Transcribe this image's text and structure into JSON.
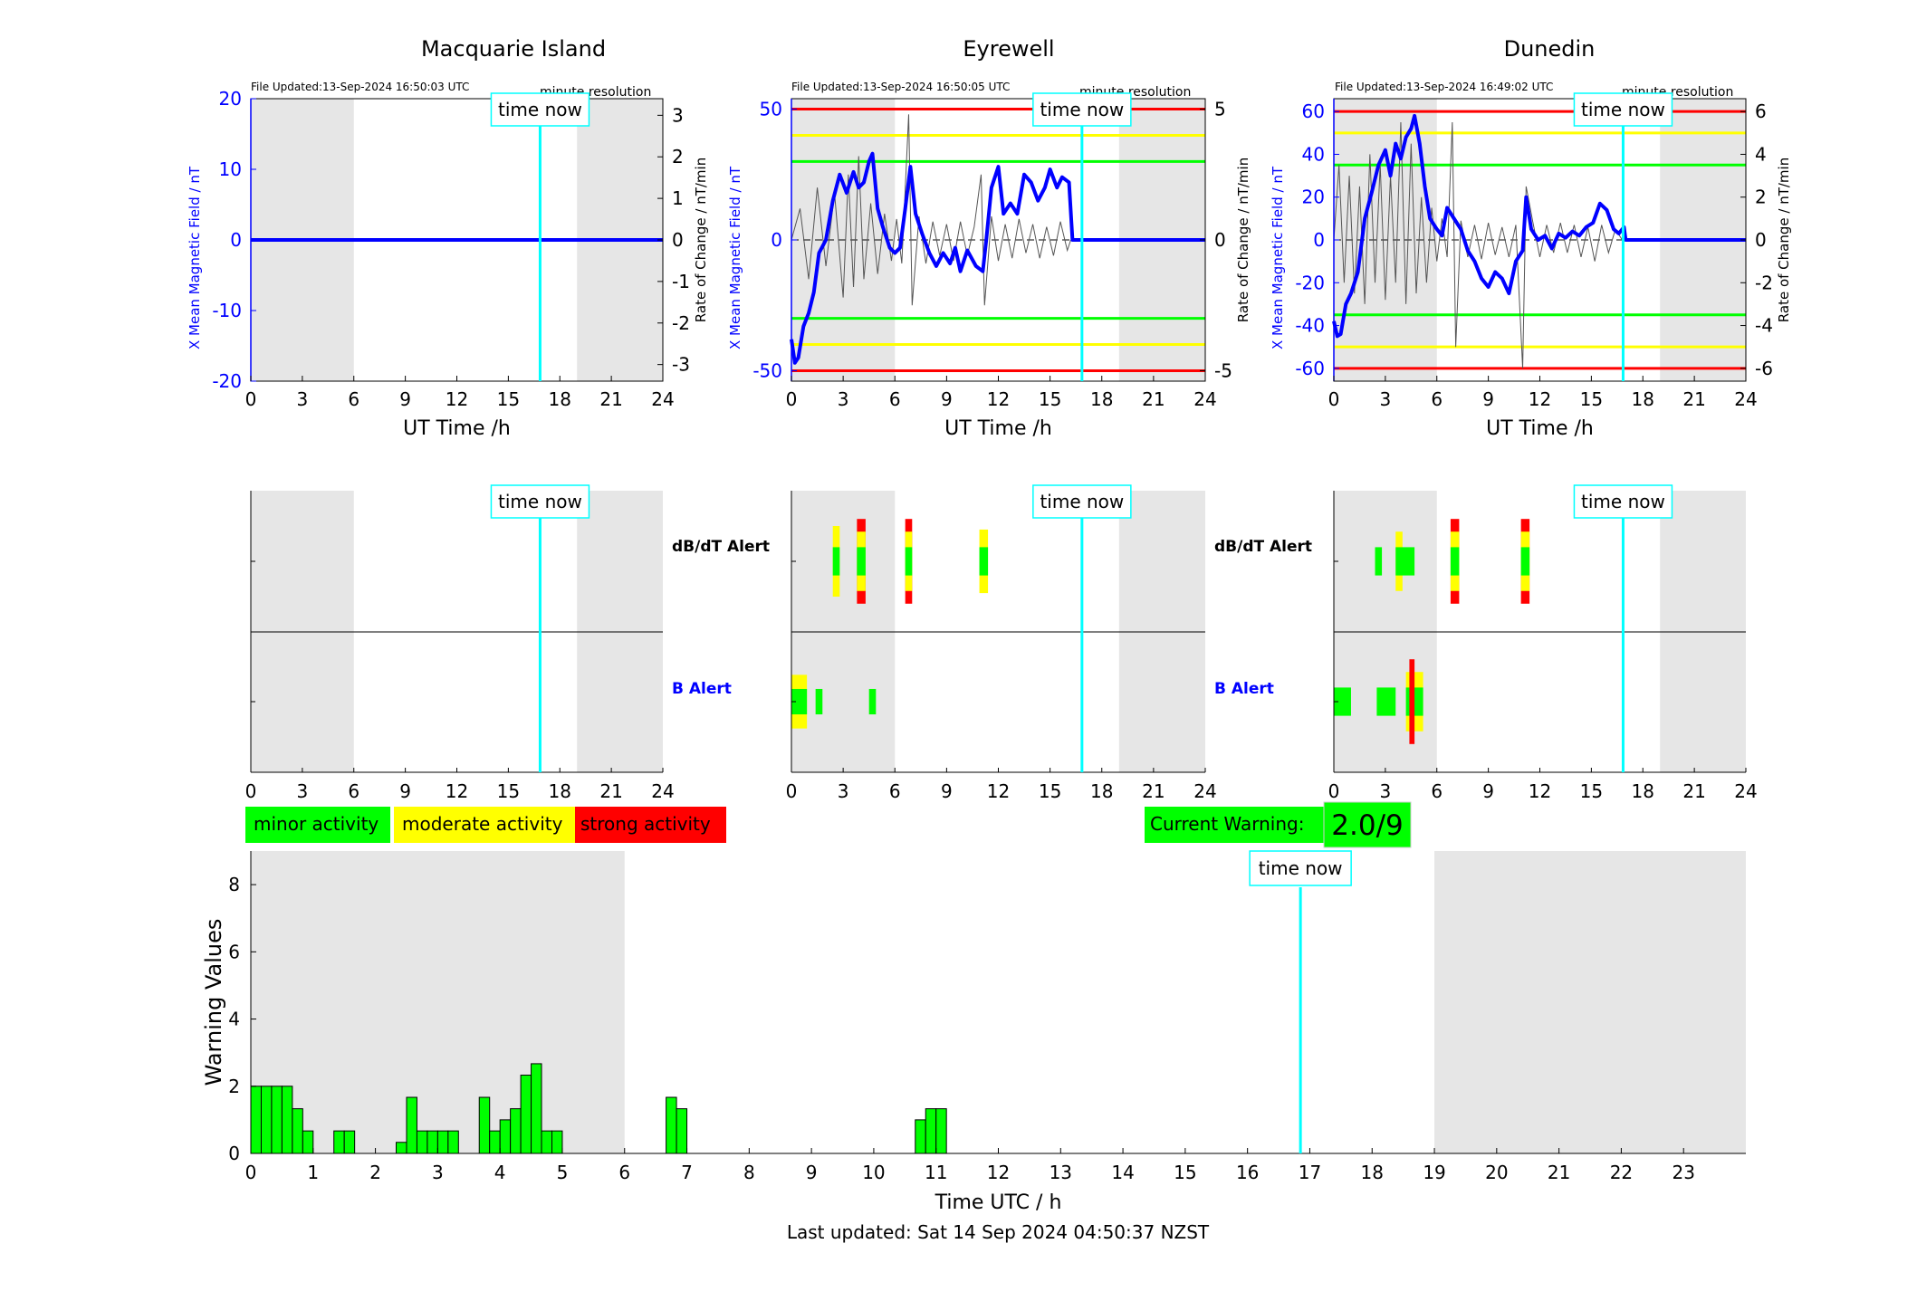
{
  "colors": {
    "blue": "#0000ff",
    "green": "#00ff00",
    "yellow": "#ffff00",
    "red": "#ff0000",
    "cyan": "#00ffff",
    "shade": "#e6e6e6",
    "trace": "#555555"
  },
  "stations": [
    {
      "title": "Macquarie Island",
      "file_updated": "File Updated:13-Sep-2024 16:50:03 UTC",
      "resolution": "minute resolution",
      "ylabel_left": "X Mean Magnetic Field / nT",
      "ylabel_right": "Rate of Change / nT/min",
      "yticks_left": [
        "20",
        "10",
        "0",
        "-10",
        "-20"
      ],
      "yticks_right": [
        "3",
        "2",
        "1",
        "0",
        "-1",
        "-2",
        "-3"
      ],
      "time_now": "time now",
      "xlabel": "UT Time /h",
      "xticks": [
        "0",
        "3",
        "6",
        "9",
        "12",
        "15",
        "18",
        "21",
        "24"
      ],
      "ylim": [
        -20,
        20
      ],
      "rlim": [
        -3.4,
        3.4
      ],
      "thresholds": [],
      "field_series": [
        [
          0,
          0
        ],
        [
          17,
          0
        ],
        [
          24,
          0
        ]
      ],
      "alerts": {
        "dbdt": [],
        "b": []
      }
    },
    {
      "title": "Eyrewell",
      "file_updated": "File Updated:13-Sep-2024 16:50:05 UTC",
      "resolution": "minute resolution",
      "ylabel_left": "X Mean Magnetic Field / nT",
      "ylabel_right": "Rate of Change / nT/min",
      "yticks_left": [
        "50",
        "0",
        "-50"
      ],
      "yticks_right": [
        "5",
        "0",
        "-5"
      ],
      "time_now": "time now",
      "xlabel": "UT Time /h",
      "xticks": [
        "0",
        "3",
        "6",
        "9",
        "12",
        "15",
        "18",
        "21",
        "24"
      ],
      "ylim": [
        -54,
        54
      ],
      "rlim": [
        -5.4,
        5.4
      ],
      "thresholds": [
        {
          "v": 50,
          "c": "red"
        },
        {
          "v": 40,
          "c": "yellow"
        },
        {
          "v": 30,
          "c": "green"
        },
        {
          "v": -30,
          "c": "green"
        },
        {
          "v": -40,
          "c": "yellow"
        },
        {
          "v": -50,
          "c": "red"
        }
      ],
      "field_series": [
        [
          0,
          -38
        ],
        [
          0.2,
          -47
        ],
        [
          0.4,
          -45
        ],
        [
          0.7,
          -33
        ],
        [
          1,
          -28
        ],
        [
          1.3,
          -20
        ],
        [
          1.6,
          -5
        ],
        [
          2,
          0
        ],
        [
          2.4,
          15
        ],
        [
          2.8,
          25
        ],
        [
          3.2,
          18
        ],
        [
          3.6,
          26
        ],
        [
          3.9,
          20
        ],
        [
          4.2,
          22
        ],
        [
          4.5,
          30
        ],
        [
          4.7,
          33
        ],
        [
          5,
          12
        ],
        [
          5.3,
          5
        ],
        [
          5.7,
          -3
        ],
        [
          6,
          -5
        ],
        [
          6.3,
          -3
        ],
        [
          6.6,
          12
        ],
        [
          6.9,
          28
        ],
        [
          7.2,
          10
        ],
        [
          7.6,
          2
        ],
        [
          8,
          -5
        ],
        [
          8.4,
          -10
        ],
        [
          8.8,
          -5
        ],
        [
          9.2,
          -9
        ],
        [
          9.5,
          -3
        ],
        [
          9.8,
          -12
        ],
        [
          10.2,
          -4
        ],
        [
          10.7,
          -10
        ],
        [
          11.1,
          -12
        ],
        [
          11.3,
          0
        ],
        [
          11.6,
          20
        ],
        [
          12,
          28
        ],
        [
          12.3,
          10
        ],
        [
          12.7,
          14
        ],
        [
          13.1,
          10
        ],
        [
          13.5,
          25
        ],
        [
          13.9,
          22
        ],
        [
          14.3,
          15
        ],
        [
          14.7,
          20
        ],
        [
          15,
          27
        ],
        [
          15.4,
          20
        ],
        [
          15.7,
          24
        ],
        [
          16.1,
          22
        ],
        [
          16.3,
          0
        ],
        [
          17,
          0
        ],
        [
          24,
          0
        ]
      ],
      "rate_series": [
        [
          0,
          0
        ],
        [
          0.5,
          1.2
        ],
        [
          1,
          -1.5
        ],
        [
          1.5,
          2.0
        ],
        [
          2,
          -1.0
        ],
        [
          2.5,
          1.8
        ],
        [
          3,
          -2.2
        ],
        [
          3.3,
          2.5
        ],
        [
          3.6,
          -1.8
        ],
        [
          3.9,
          3.2
        ],
        [
          4.2,
          -1.5
        ],
        [
          4.6,
          1.4
        ],
        [
          5,
          -1.3
        ],
        [
          5.4,
          1.0
        ],
        [
          5.8,
          -0.8
        ],
        [
          6.1,
          0.8
        ],
        [
          6.4,
          -0.9
        ],
        [
          6.8,
          4.8
        ],
        [
          7,
          -2.5
        ],
        [
          7.4,
          0.9
        ],
        [
          7.8,
          -0.9
        ],
        [
          8.2,
          0.7
        ],
        [
          8.6,
          -0.6
        ],
        [
          9,
          0.6
        ],
        [
          9.4,
          -0.8
        ],
        [
          9.8,
          0.7
        ],
        [
          10.2,
          -0.6
        ],
        [
          10.6,
          0.5
        ],
        [
          11,
          2.5
        ],
        [
          11.2,
          -2.5
        ],
        [
          11.6,
          0.9
        ],
        [
          12,
          -0.8
        ],
        [
          12.4,
          0.6
        ],
        [
          12.8,
          -0.7
        ],
        [
          13.2,
          0.8
        ],
        [
          13.6,
          -0.5
        ],
        [
          14,
          0.6
        ],
        [
          14.4,
          -0.7
        ],
        [
          14.8,
          0.5
        ],
        [
          15.2,
          -0.6
        ],
        [
          15.6,
          0.7
        ],
        [
          16,
          -0.4
        ],
        [
          16.2,
          0
        ]
      ],
      "alerts": {
        "dbdt": [
          {
            "s": 2.4,
            "e": 2.8,
            "c": "yellow",
            "h": 0.5
          },
          {
            "s": 2.4,
            "e": 2.8,
            "c": "green",
            "h": 0.2
          },
          {
            "s": 3.8,
            "e": 4.3,
            "c": "red",
            "h": 0.6
          },
          {
            "s": 3.8,
            "e": 4.3,
            "c": "yellow",
            "h": 0.42
          },
          {
            "s": 3.8,
            "e": 4.3,
            "c": "green",
            "h": 0.2
          },
          {
            "s": 6.6,
            "e": 7,
            "c": "red",
            "h": 0.6
          },
          {
            "s": 6.6,
            "e": 7,
            "c": "yellow",
            "h": 0.42
          },
          {
            "s": 6.6,
            "e": 7,
            "c": "green",
            "h": 0.2
          },
          {
            "s": 10.9,
            "e": 11.4,
            "c": "yellow",
            "h": 0.45
          },
          {
            "s": 10.9,
            "e": 11.4,
            "c": "green",
            "h": 0.2
          }
        ],
        "b": [
          {
            "s": 0,
            "e": 0.9,
            "c": "yellow",
            "h": 0.38
          },
          {
            "s": 0,
            "e": 0.9,
            "c": "green",
            "h": 0.18
          },
          {
            "s": 1.4,
            "e": 1.8,
            "c": "green",
            "h": 0.18
          },
          {
            "s": 4.5,
            "e": 4.9,
            "c": "green",
            "h": 0.18
          }
        ]
      }
    },
    {
      "title": "Dunedin",
      "file_updated": "File Updated:13-Sep-2024 16:49:02 UTC",
      "resolution": "minute resolution",
      "ylabel_left": "X Mean Magnetic Field / nT",
      "ylabel_right": "Rate of Change / nT/min",
      "yticks_left": [
        "60",
        "40",
        "20",
        "0",
        "-20",
        "-40",
        "-60"
      ],
      "yticks_right": [
        "6",
        "4",
        "2",
        "0",
        "-2",
        "-4",
        "-6"
      ],
      "time_now": "time now",
      "xlabel": "UT Time /h",
      "xticks": [
        "0",
        "3",
        "6",
        "9",
        "12",
        "15",
        "18",
        "21",
        "24"
      ],
      "ylim": [
        -66,
        66
      ],
      "rlim": [
        -6.6,
        6.6
      ],
      "thresholds": [
        {
          "v": 60,
          "c": "red"
        },
        {
          "v": 50,
          "c": "yellow"
        },
        {
          "v": 35,
          "c": "green"
        },
        {
          "v": -35,
          "c": "green"
        },
        {
          "v": -50,
          "c": "yellow"
        },
        {
          "v": -60,
          "c": "red"
        }
      ],
      "field_series": [
        [
          0,
          -38
        ],
        [
          0.2,
          -45
        ],
        [
          0.4,
          -44
        ],
        [
          0.7,
          -30
        ],
        [
          1,
          -25
        ],
        [
          1.4,
          -15
        ],
        [
          1.8,
          10
        ],
        [
          2.2,
          22
        ],
        [
          2.6,
          35
        ],
        [
          3,
          42
        ],
        [
          3.3,
          30
        ],
        [
          3.6,
          45
        ],
        [
          3.9,
          38
        ],
        [
          4.2,
          48
        ],
        [
          4.5,
          52
        ],
        [
          4.7,
          58
        ],
        [
          5,
          45
        ],
        [
          5.3,
          25
        ],
        [
          5.6,
          10
        ],
        [
          6,
          5
        ],
        [
          6.3,
          2
        ],
        [
          6.6,
          15
        ],
        [
          7,
          10
        ],
        [
          7.4,
          5
        ],
        [
          7.8,
          -5
        ],
        [
          8.2,
          -10
        ],
        [
          8.6,
          -18
        ],
        [
          9,
          -22
        ],
        [
          9.4,
          -15
        ],
        [
          9.8,
          -18
        ],
        [
          10.2,
          -25
        ],
        [
          10.6,
          -10
        ],
        [
          11,
          -5
        ],
        [
          11.2,
          20
        ],
        [
          11.5,
          5
        ],
        [
          11.9,
          0
        ],
        [
          12.3,
          2
        ],
        [
          12.7,
          -4
        ],
        [
          13.1,
          3
        ],
        [
          13.5,
          1
        ],
        [
          13.9,
          4
        ],
        [
          14.3,
          2
        ],
        [
          14.7,
          6
        ],
        [
          15.1,
          8
        ],
        [
          15.5,
          17
        ],
        [
          15.9,
          14
        ],
        [
          16.3,
          5
        ],
        [
          16.6,
          3
        ],
        [
          16.9,
          6
        ],
        [
          17,
          0
        ],
        [
          24,
          0
        ]
      ],
      "rate_series": [
        [
          0,
          0
        ],
        [
          0.3,
          3.5
        ],
        [
          0.6,
          -2
        ],
        [
          0.9,
          3
        ],
        [
          1.2,
          -2.5
        ],
        [
          1.5,
          2.5
        ],
        [
          1.8,
          -3
        ],
        [
          2.1,
          4
        ],
        [
          2.4,
          -2
        ],
        [
          2.7,
          3.5
        ],
        [
          3,
          -2.8
        ],
        [
          3.3,
          3
        ],
        [
          3.6,
          -2
        ],
        [
          3.9,
          5.5
        ],
        [
          4.2,
          -3
        ],
        [
          4.5,
          4.5
        ],
        [
          4.8,
          -2.5
        ],
        [
          5.1,
          2
        ],
        [
          5.4,
          -2
        ],
        [
          5.7,
          1.5
        ],
        [
          6,
          -1
        ],
        [
          6.3,
          1
        ],
        [
          6.6,
          -0.8
        ],
        [
          6.9,
          5.5
        ],
        [
          7.1,
          -5
        ],
        [
          7.4,
          0.9
        ],
        [
          7.8,
          -0.8
        ],
        [
          8.2,
          0.7
        ],
        [
          8.6,
          -0.9
        ],
        [
          9,
          0.8
        ],
        [
          9.4,
          -0.7
        ],
        [
          9.8,
          0.6
        ],
        [
          10.2,
          -0.8
        ],
        [
          10.6,
          0.7
        ],
        [
          11,
          -6
        ],
        [
          11.2,
          2.5
        ],
        [
          11.6,
          0.8
        ],
        [
          12,
          -0.8
        ],
        [
          12.4,
          0.7
        ],
        [
          12.8,
          -0.6
        ],
        [
          13.2,
          0.8
        ],
        [
          13.6,
          -0.6
        ],
        [
          14,
          0.7
        ],
        [
          14.4,
          -0.8
        ],
        [
          14.8,
          0.6
        ],
        [
          15.2,
          -1
        ],
        [
          15.6,
          0.7
        ],
        [
          16,
          -0.6
        ],
        [
          16.4,
          0.5
        ],
        [
          16.8,
          0
        ]
      ],
      "alerts": {
        "dbdt": [
          {
            "s": 2.4,
            "e": 2.8,
            "c": "green",
            "h": 0.2
          },
          {
            "s": 3.6,
            "e": 4,
            "c": "yellow",
            "h": 0.42
          },
          {
            "s": 3.6,
            "e": 4.7,
            "c": "green",
            "h": 0.2
          },
          {
            "s": 6.8,
            "e": 7.3,
            "c": "red",
            "h": 0.6
          },
          {
            "s": 6.8,
            "e": 7.3,
            "c": "yellow",
            "h": 0.42
          },
          {
            "s": 6.8,
            "e": 7.3,
            "c": "green",
            "h": 0.2
          },
          {
            "s": 10.9,
            "e": 11.4,
            "c": "red",
            "h": 0.6
          },
          {
            "s": 10.9,
            "e": 11.4,
            "c": "yellow",
            "h": 0.42
          },
          {
            "s": 10.9,
            "e": 11.4,
            "c": "green",
            "h": 0.2
          }
        ],
        "b": [
          {
            "s": 0,
            "e": 1,
            "c": "green",
            "h": 0.2
          },
          {
            "s": 2.5,
            "e": 3.6,
            "c": "green",
            "h": 0.2
          },
          {
            "s": 4.2,
            "e": 5.2,
            "c": "yellow",
            "h": 0.42
          },
          {
            "s": 4.2,
            "e": 5.2,
            "c": "green",
            "h": 0.2
          },
          {
            "s": 4.4,
            "e": 4.7,
            "c": "red",
            "h": 0.6
          }
        ]
      }
    }
  ],
  "alert_labels": {
    "dbdt": "dB/dT Alert",
    "b": "B Alert"
  },
  "alert_xticks": [
    "0",
    "3",
    "6",
    "9",
    "12",
    "15",
    "18",
    "21",
    "24"
  ],
  "time_now_hour": 16.85,
  "shade_ranges": [
    [
      0,
      6
    ],
    [
      19,
      24
    ]
  ],
  "legend": [
    {
      "label": "minor activity",
      "color": "#00ff00"
    },
    {
      "label": "moderate activity",
      "color": "#ffff00"
    },
    {
      "label": "strong activity",
      "color": "#ff0000"
    }
  ],
  "current_warning": {
    "label": "Current Warning:",
    "value": "2.0/9"
  },
  "chart_data": {
    "type": "bar",
    "title": "",
    "xlabel": "Time UTC / h",
    "ylabel": "Warning Values",
    "xlim": [
      0,
      24
    ],
    "ylim": [
      0,
      9
    ],
    "xticks": [
      "0",
      "1",
      "2",
      "3",
      "4",
      "5",
      "6",
      "7",
      "8",
      "9",
      "10",
      "11",
      "12",
      "13",
      "14",
      "15",
      "16",
      "17",
      "18",
      "19",
      "20",
      "21",
      "22",
      "23"
    ],
    "yticks": [
      "0",
      "2",
      "4",
      "6",
      "8"
    ],
    "time_now_label": "time now",
    "shade_ranges": [
      [
        0,
        6
      ],
      [
        19,
        24
      ]
    ],
    "bar_width": 0.1667,
    "bars": [
      {
        "x": 0,
        "v": 2
      },
      {
        "x": 0.1667,
        "v": 2
      },
      {
        "x": 0.3333,
        "v": 2
      },
      {
        "x": 0.5,
        "v": 2
      },
      {
        "x": 0.6667,
        "v": 1.33
      },
      {
        "x": 0.8333,
        "v": 0.67
      },
      {
        "x": 1.3333,
        "v": 0.67
      },
      {
        "x": 1.5,
        "v": 0.67
      },
      {
        "x": 2.3333,
        "v": 0.33
      },
      {
        "x": 2.5,
        "v": 1.67
      },
      {
        "x": 2.6667,
        "v": 0.67
      },
      {
        "x": 2.8333,
        "v": 0.67
      },
      {
        "x": 3,
        "v": 0.67
      },
      {
        "x": 3.1667,
        "v": 0.67
      },
      {
        "x": 3.6667,
        "v": 1.67
      },
      {
        "x": 3.8333,
        "v": 0.67
      },
      {
        "x": 4,
        "v": 1
      },
      {
        "x": 4.1667,
        "v": 1.33
      },
      {
        "x": 4.3333,
        "v": 2.33
      },
      {
        "x": 4.5,
        "v": 2.67
      },
      {
        "x": 4.6667,
        "v": 0.67
      },
      {
        "x": 4.8333,
        "v": 0.67
      },
      {
        "x": 6.6667,
        "v": 1.67
      },
      {
        "x": 6.8333,
        "v": 1.33
      },
      {
        "x": 10.6667,
        "v": 1
      },
      {
        "x": 10.8333,
        "v": 1.33
      },
      {
        "x": 11,
        "v": 1.33
      }
    ]
  },
  "footer": "Last updated: Sat 14 Sep 2024 04:50:37 NZST"
}
